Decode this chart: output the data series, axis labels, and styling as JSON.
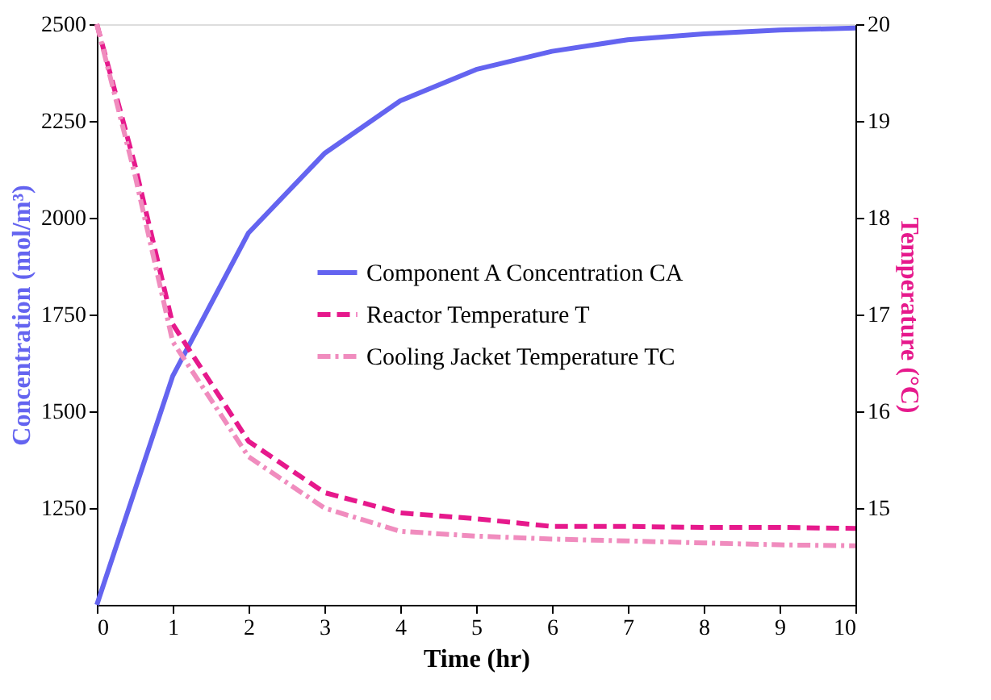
{
  "chart_data": {
    "type": "line",
    "xlabel": "Time (hr)",
    "ylabel": "Concentration (mol/m³)",
    "y2label": "Temperature (°C)",
    "xlim": [
      0,
      10
    ],
    "xticks": [
      0,
      1,
      2,
      3,
      4,
      5,
      6,
      7,
      8,
      9,
      10
    ],
    "ylim": [
      1000,
      2500
    ],
    "yticks": [
      1250,
      1500,
      1750,
      2000,
      2250,
      2500
    ],
    "y2lim": [
      14,
      20
    ],
    "y2ticks": [
      15,
      16,
      17,
      18,
      19,
      20
    ],
    "grid": false,
    "legend": "right",
    "marker": "none",
    "series": [
      {
        "name": "Component A Concentration CA",
        "color": "#6464f0",
        "line_style": "solid",
        "x": [
          0,
          1,
          2,
          3,
          4,
          5,
          6,
          7,
          8,
          9,
          10
        ],
        "values": [
          1000,
          1591,
          1961,
          2166,
          2302,
          2383,
          2430,
          2460,
          2475,
          2485,
          2490
        ]
      },
      {
        "name": "Reactor Temperature T",
        "color": "#e6198c",
        "line_style": "dashed",
        "axis": "y2",
        "x": [
          0,
          0.5,
          1,
          2,
          3,
          4,
          5,
          6,
          7,
          8,
          9,
          10
        ],
        "values": [
          20,
          18.55,
          16.9,
          15.69,
          15.16,
          14.95,
          14.89,
          14.81,
          14.81,
          14.8,
          14.8,
          14.79
        ]
      },
      {
        "name": "Cooling Jacket Temperature TC",
        "color": "#f08cbe",
        "line_style": "dashdot",
        "axis": "y2",
        "x": [
          0,
          0.5,
          1,
          2,
          3,
          4,
          5,
          6,
          7,
          8,
          9,
          10
        ],
        "values": [
          20,
          18.45,
          16.72,
          15.53,
          15.0,
          14.76,
          14.71,
          14.68,
          14.66,
          14.64,
          14.62,
          14.61
        ]
      }
    ]
  }
}
